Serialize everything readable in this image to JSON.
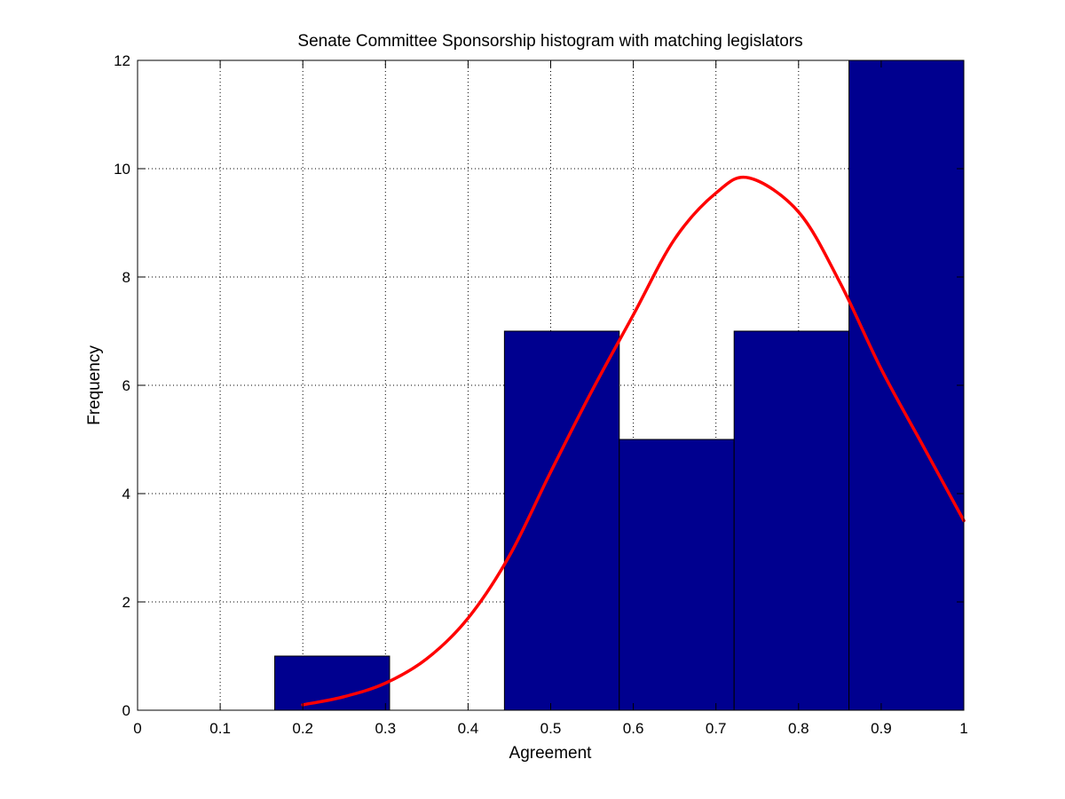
{
  "chart_data": {
    "type": "bar",
    "title": "Senate Committee Sponsorship histogram with matching legislators",
    "xlabel": "Agreement",
    "ylabel": "Frequency",
    "xlim": [
      0,
      1
    ],
    "ylim": [
      0,
      12
    ],
    "xticks": [
      "0",
      "0.1",
      "0.2",
      "0.3",
      "0.4",
      "0.5",
      "0.6",
      "0.7",
      "0.8",
      "0.9",
      "1"
    ],
    "yticks": [
      "0",
      "2",
      "4",
      "6",
      "8",
      "10",
      "12"
    ],
    "grid": true,
    "bar_color": "#00008F",
    "bar_edge_color": "#000000",
    "bins": [
      {
        "x_start": 0.166,
        "x_end": 0.305,
        "count": 1
      },
      {
        "x_start": 0.305,
        "x_end": 0.444,
        "count": 0
      },
      {
        "x_start": 0.444,
        "x_end": 0.583,
        "count": 7
      },
      {
        "x_start": 0.583,
        "x_end": 0.722,
        "count": 5
      },
      {
        "x_start": 0.722,
        "x_end": 0.861,
        "count": 7
      },
      {
        "x_start": 0.861,
        "x_end": 1.0,
        "count": 12
      }
    ],
    "fit_curve": {
      "type": "line",
      "color": "#FF0000",
      "x": [
        0.2,
        0.25,
        0.3,
        0.35,
        0.4,
        0.45,
        0.5,
        0.55,
        0.6,
        0.65,
        0.7,
        0.74,
        0.8,
        0.85,
        0.9,
        0.95,
        1.0
      ],
      "y": [
        0.1,
        0.25,
        0.5,
        0.95,
        1.7,
        2.85,
        4.4,
        5.9,
        7.3,
        8.7,
        9.55,
        9.83,
        9.2,
        7.9,
        6.3,
        4.9,
        3.5
      ]
    }
  }
}
